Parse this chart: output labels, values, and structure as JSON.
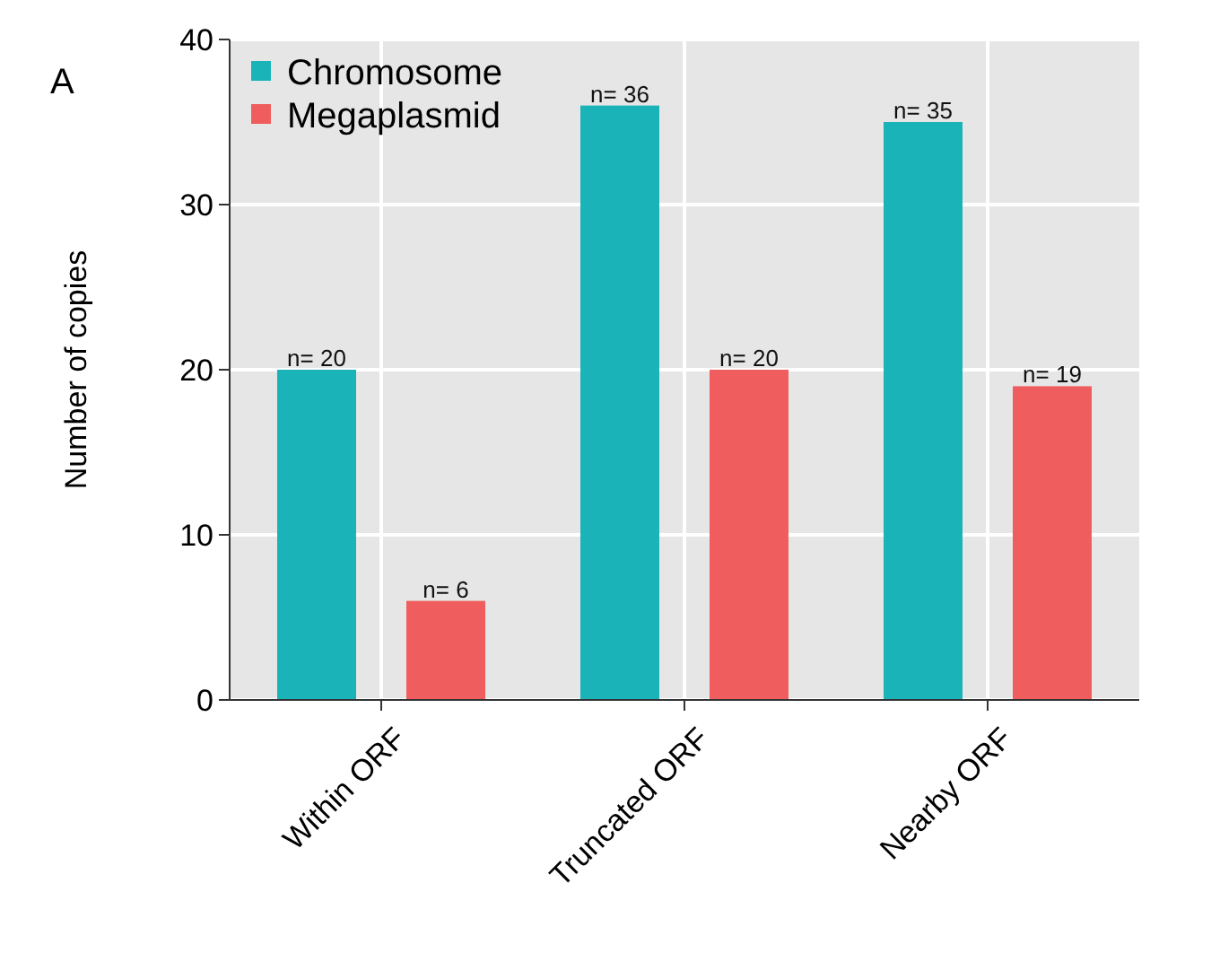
{
  "chart_data": {
    "type": "bar",
    "ylabel": "Number of copies",
    "annotations": [
      "A"
    ],
    "categories": [
      "Within ORF",
      "Truncated ORF",
      "Nearby ORF"
    ],
    "series": [
      {
        "name": "Chromosome",
        "color": "#1ab4b8",
        "values": [
          20,
          36,
          35
        ],
        "value_labels": [
          "n= 20",
          "n= 36",
          "n= 35"
        ]
      },
      {
        "name": "Megaplasmid",
        "color": "#f05d5e",
        "values": [
          6,
          20,
          19
        ],
        "value_labels": [
          "n= 6",
          "n= 20",
          "n= 19"
        ]
      }
    ],
    "ylim": [
      0,
      40
    ],
    "yticks": [
      0,
      10,
      20,
      30,
      40
    ],
    "grid": true,
    "legend": "top left"
  }
}
